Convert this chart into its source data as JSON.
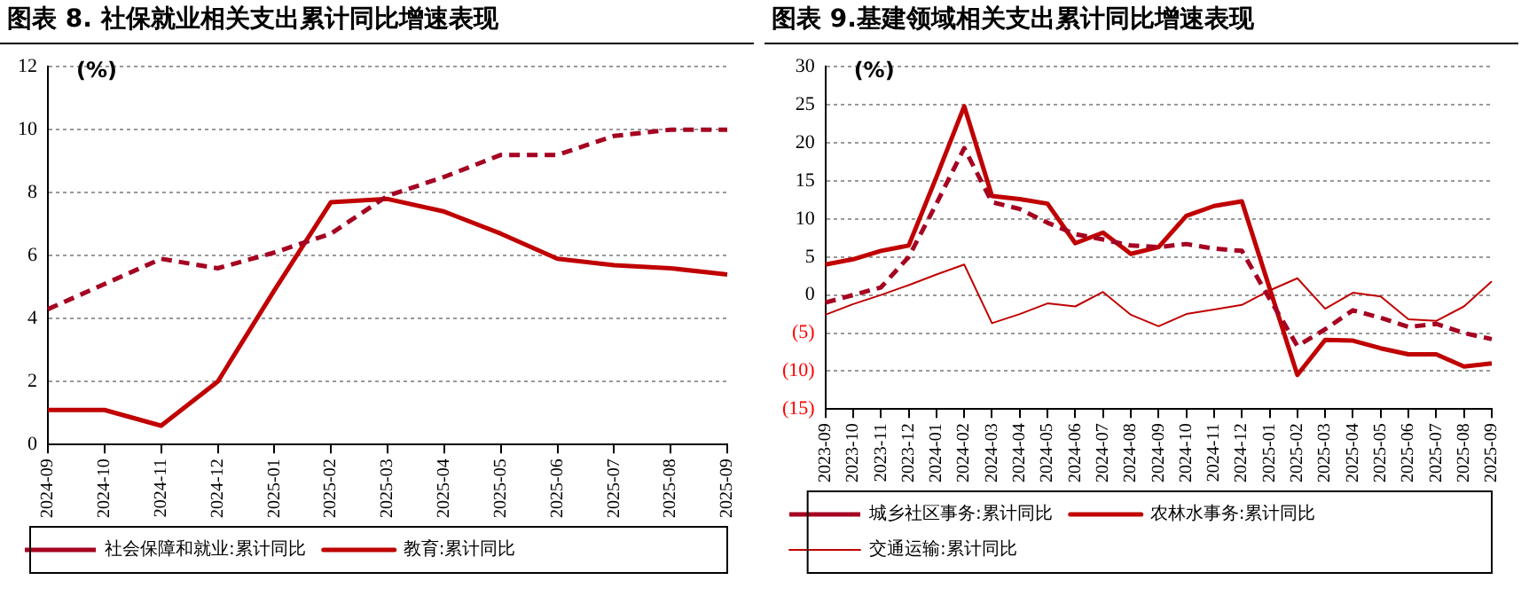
{
  "chart_data": [
    {
      "type": "line",
      "title": "图表 8. 社保就业相关支出累计同比增速表现",
      "ylabel": "(%)",
      "categories": [
        "2024-09",
        "2024-10",
        "2024-11",
        "2024-12",
        "2025-01",
        "2025-02",
        "2025-03",
        "2025-04",
        "2025-05",
        "2025-06",
        "2025-07",
        "2025-08",
        "2025-09"
      ],
      "series": [
        {
          "name": "社会保障和就业:累计同比",
          "color": "#a50021",
          "line_style": "dashed",
          "values": [
            4.3,
            5.1,
            5.9,
            5.6,
            6.1,
            6.7,
            7.9,
            8.5,
            9.2,
            9.2,
            9.8,
            10.0,
            10.0
          ]
        },
        {
          "name": "教育:累计同比",
          "color": "#c00000",
          "line_style": "solid",
          "values": [
            1.1,
            1.1,
            0.6,
            2.0,
            4.9,
            7.7,
            7.8,
            7.4,
            6.7,
            5.9,
            5.7,
            5.6,
            5.4
          ]
        }
      ],
      "ylim": [
        0,
        12
      ],
      "yticks": [
        0,
        2,
        4,
        6,
        8,
        10,
        12
      ],
      "grid": "y",
      "legend": "bottom",
      "marker": "none"
    },
    {
      "type": "line",
      "title": "图表 9.基建领域相关支出累计同比增速表现",
      "ylabel": "(%)",
      "categories": [
        "2023-09",
        "2023-10",
        "2023-11",
        "2023-12",
        "2024-01",
        "2024-02",
        "2024-03",
        "2024-04",
        "2024-05",
        "2024-06",
        "2024-07",
        "2024-08",
        "2024-09",
        "2024-10",
        "2024-11",
        "2024-12",
        "2025-01",
        "2025-02",
        "2025-03",
        "2025-04",
        "2025-05",
        "2025-06",
        "2025-07",
        "2025-08",
        "2025-09"
      ],
      "series": [
        {
          "name": "城乡社区事务:累计同比",
          "color": "#a50021",
          "line_style": "dashed",
          "values": [
            -1,
            0,
            1,
            5,
            12,
            19.3,
            12.2,
            11.3,
            9.5,
            8,
            7.3,
            6.5,
            6.3,
            6.7,
            6.1,
            5.8,
            -0.5,
            -6.7,
            -4.5,
            -2,
            -3,
            -4.2,
            -3.8,
            -5,
            -5.8
          ]
        },
        {
          "name": "农林水事务:累计同比",
          "color": "#c00000",
          "line_style": "solid",
          "values": [
            4,
            4.7,
            5.8,
            6.5,
            15.5,
            24.8,
            13,
            12.6,
            12,
            6.8,
            8.2,
            5.4,
            6.3,
            10.4,
            11.7,
            12.3,
            0.9,
            -10.5,
            -5.9,
            -6,
            -7,
            -7.8,
            -7.8,
            -9.4,
            -9.0
          ]
        },
        {
          "name": "交通运输:累计同比",
          "color": "#c00000",
          "line_style": "solid",
          "values": [
            -2.6,
            -1.2,
            0,
            1.3,
            2.7,
            4.0,
            -3.7,
            -2.5,
            -1.1,
            -1.5,
            0.4,
            -2.6,
            -4.1,
            -2.5,
            -1.9,
            -1.3,
            0.6,
            2.2,
            -1.8,
            0.3,
            -0.2,
            -3.2,
            -3.4,
            -1.5,
            1.8
          ]
        }
      ],
      "ylim": [
        -15,
        30
      ],
      "yticks": [
        {
          "value": -15,
          "label": "(15)"
        },
        {
          "value": -10,
          "label": "(10)"
        },
        {
          "value": -5,
          "label": "(5)"
        },
        0,
        5,
        10,
        15,
        20,
        25,
        30
      ],
      "grid": "y",
      "legend": "bottom",
      "marker": "none"
    }
  ]
}
